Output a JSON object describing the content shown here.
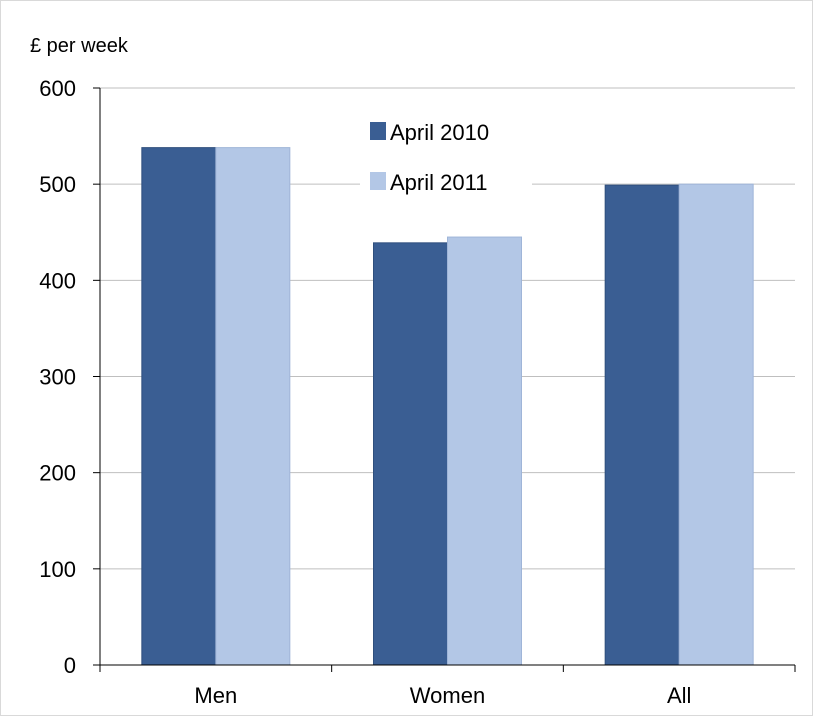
{
  "chart_data": {
    "type": "bar",
    "title": "",
    "unit_label": "£ per week",
    "xlabel": "",
    "ylabel": "",
    "categories": [
      "Men",
      "Women",
      "All"
    ],
    "series": [
      {
        "name": "April 2010",
        "values": [
          538,
          439,
          499
        ],
        "color": "#3a5e93"
      },
      {
        "name": "April 2011",
        "values": [
          538,
          445,
          500
        ],
        "color": "#b3c7e6"
      }
    ],
    "ylim": [
      0,
      600
    ],
    "yticks": [
      0,
      100,
      200,
      300,
      400,
      500,
      600
    ],
    "grid": true,
    "legend_position": "top-center"
  }
}
